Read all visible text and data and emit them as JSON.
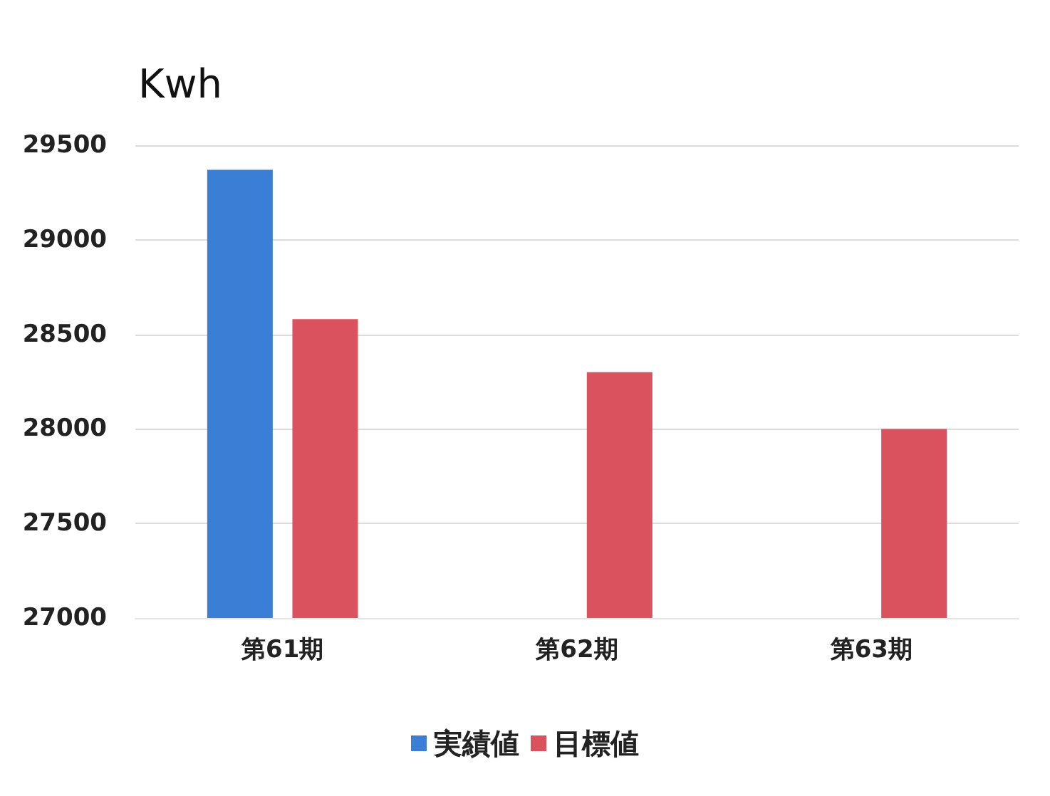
{
  "chart_data": {
    "type": "bar",
    "ylabel": "Kwh",
    "categories": [
      "第61期",
      "第62期",
      "第63期"
    ],
    "series": [
      {
        "name": "実績値",
        "color": "#3a7fd5",
        "values": [
          29370,
          null,
          null
        ]
      },
      {
        "name": "目標値",
        "color": "#d9525e",
        "values": [
          28580,
          28300,
          28000
        ]
      }
    ],
    "ylim": [
      27000,
      29500
    ],
    "yticks": [
      27000,
      27500,
      28000,
      28500,
      29000,
      29500
    ],
    "grid": "y",
    "legend": "bottom"
  }
}
